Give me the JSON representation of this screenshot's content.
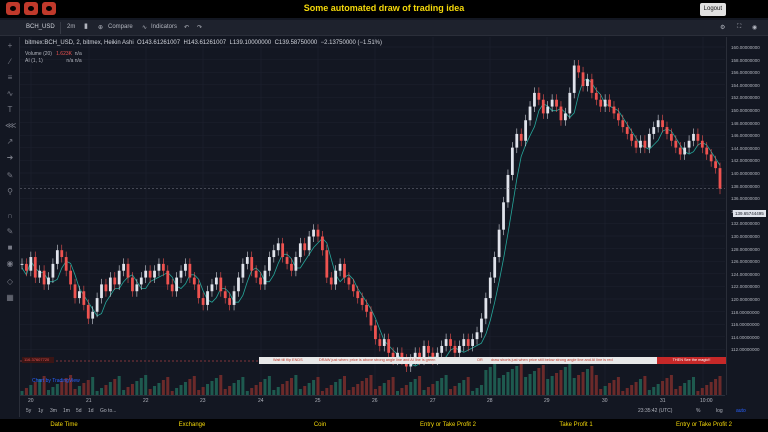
{
  "banner": {
    "title": "Some automated draw of trading idea",
    "logout_label": "Logout"
  },
  "toolbar": {
    "symbol": "BCH_USD",
    "interval": "2m",
    "compare": "Compare",
    "indicators": "Indicators"
  },
  "legend": {
    "title": "bitmex:BCH_USD, 2, bitmex, Heikin Ashi",
    "open": "O143.61261007",
    "high": "H143.61261007",
    "low": "L139.10000000",
    "close": "C139.58750000",
    "change": "−2.13750000 (−1.51%)",
    "volume_label": "Volume (20)",
    "volume_value": "1.623K",
    "volume_na": "n/a",
    "ai_label": "AI (1, 1)",
    "ai_values": "n/a  n/a"
  },
  "price_axis": {
    "labels": [
      "160.00000000",
      "158.00000000",
      "156.00000000",
      "154.00000000",
      "152.00000000",
      "150.00000000",
      "148.00000000",
      "146.00000000",
      "144.00000000",
      "142.00000000",
      "140.00000000",
      "138.00000000",
      "136.00000000",
      "134.00000000",
      "132.00000000",
      "130.00000000",
      "128.00000000",
      "126.00000000",
      "124.00000000",
      "122.00000000",
      "120.00000000",
      "118.00000000",
      "116.00000000",
      "114.00000000",
      "112.00000000"
    ],
    "last_price": "139.65744495"
  },
  "time_axis": {
    "labels": [
      "20",
      "21",
      "22",
      "23",
      "24",
      "25",
      "26",
      "27",
      "28",
      "29",
      "30",
      "31",
      "10:00"
    ]
  },
  "bottom": {
    "ranges": [
      "5y",
      "1y",
      "3m",
      "1m",
      "5d",
      "1d",
      "Go to..."
    ],
    "clock": "23:35:42 (UTC)",
    "percent": "%",
    "log": "log",
    "auto": "auto"
  },
  "annotation": {
    "part1": "Wait till flip ENDS",
    "part2": "DRAW just when: price is above strong angle line and AI line is green",
    "part3": "OR",
    "part4": "draw shorts just when price still below strong angle line and AI line is red",
    "cta": "THEN See the magic!!",
    "left_tag": "116.37607720"
  },
  "watermark": "Chart by TradingView",
  "footer": {
    "items": [
      "Date Time",
      "Exchange",
      "Coin",
      "Entry or Take Profit 2",
      "Take Profit 1",
      "Entry or Take Profit 2"
    ]
  },
  "colors": {
    "up": "#26a69a",
    "down": "#ef5350",
    "banner_title": "#f5d90a",
    "background": "#131722"
  },
  "chart_data": {
    "type": "candlestick",
    "ylim": [
      111,
      161
    ],
    "closes": [
      129,
      128,
      130,
      127,
      128,
      126,
      127,
      129,
      131,
      130,
      128,
      126,
      124,
      125,
      123,
      121,
      122,
      124,
      126,
      125,
      127,
      126,
      128,
      129,
      127,
      125,
      126,
      127,
      128,
      127,
      128,
      129,
      128,
      126,
      125,
      127,
      128,
      129,
      127,
      126,
      124,
      123,
      125,
      126,
      127,
      125,
      124,
      123,
      125,
      127,
      129,
      130,
      128,
      127,
      126,
      128,
      130,
      131,
      132,
      130,
      129,
      128,
      130,
      132,
      131,
      133,
      134,
      133,
      131,
      127,
      126,
      128,
      129,
      127,
      126,
      125,
      124,
      123,
      122,
      120,
      118,
      117,
      118,
      116,
      115,
      116,
      115,
      114,
      115,
      116,
      115,
      117,
      116,
      115,
      116,
      117,
      118,
      117,
      116,
      117,
      118,
      117,
      118,
      119,
      121,
      124,
      127,
      130,
      134,
      138,
      142,
      146,
      148,
      147,
      150,
      152,
      154,
      153,
      151,
      152,
      153,
      152,
      150,
      151,
      154,
      158,
      157,
      155,
      156,
      154,
      153,
      152,
      153,
      152,
      151,
      150,
      149,
      148,
      147,
      146,
      147,
      146,
      148,
      149,
      150,
      149,
      148,
      147,
      146,
      145,
      146,
      147,
      148,
      147,
      146,
      145,
      144,
      143,
      140
    ]
  }
}
